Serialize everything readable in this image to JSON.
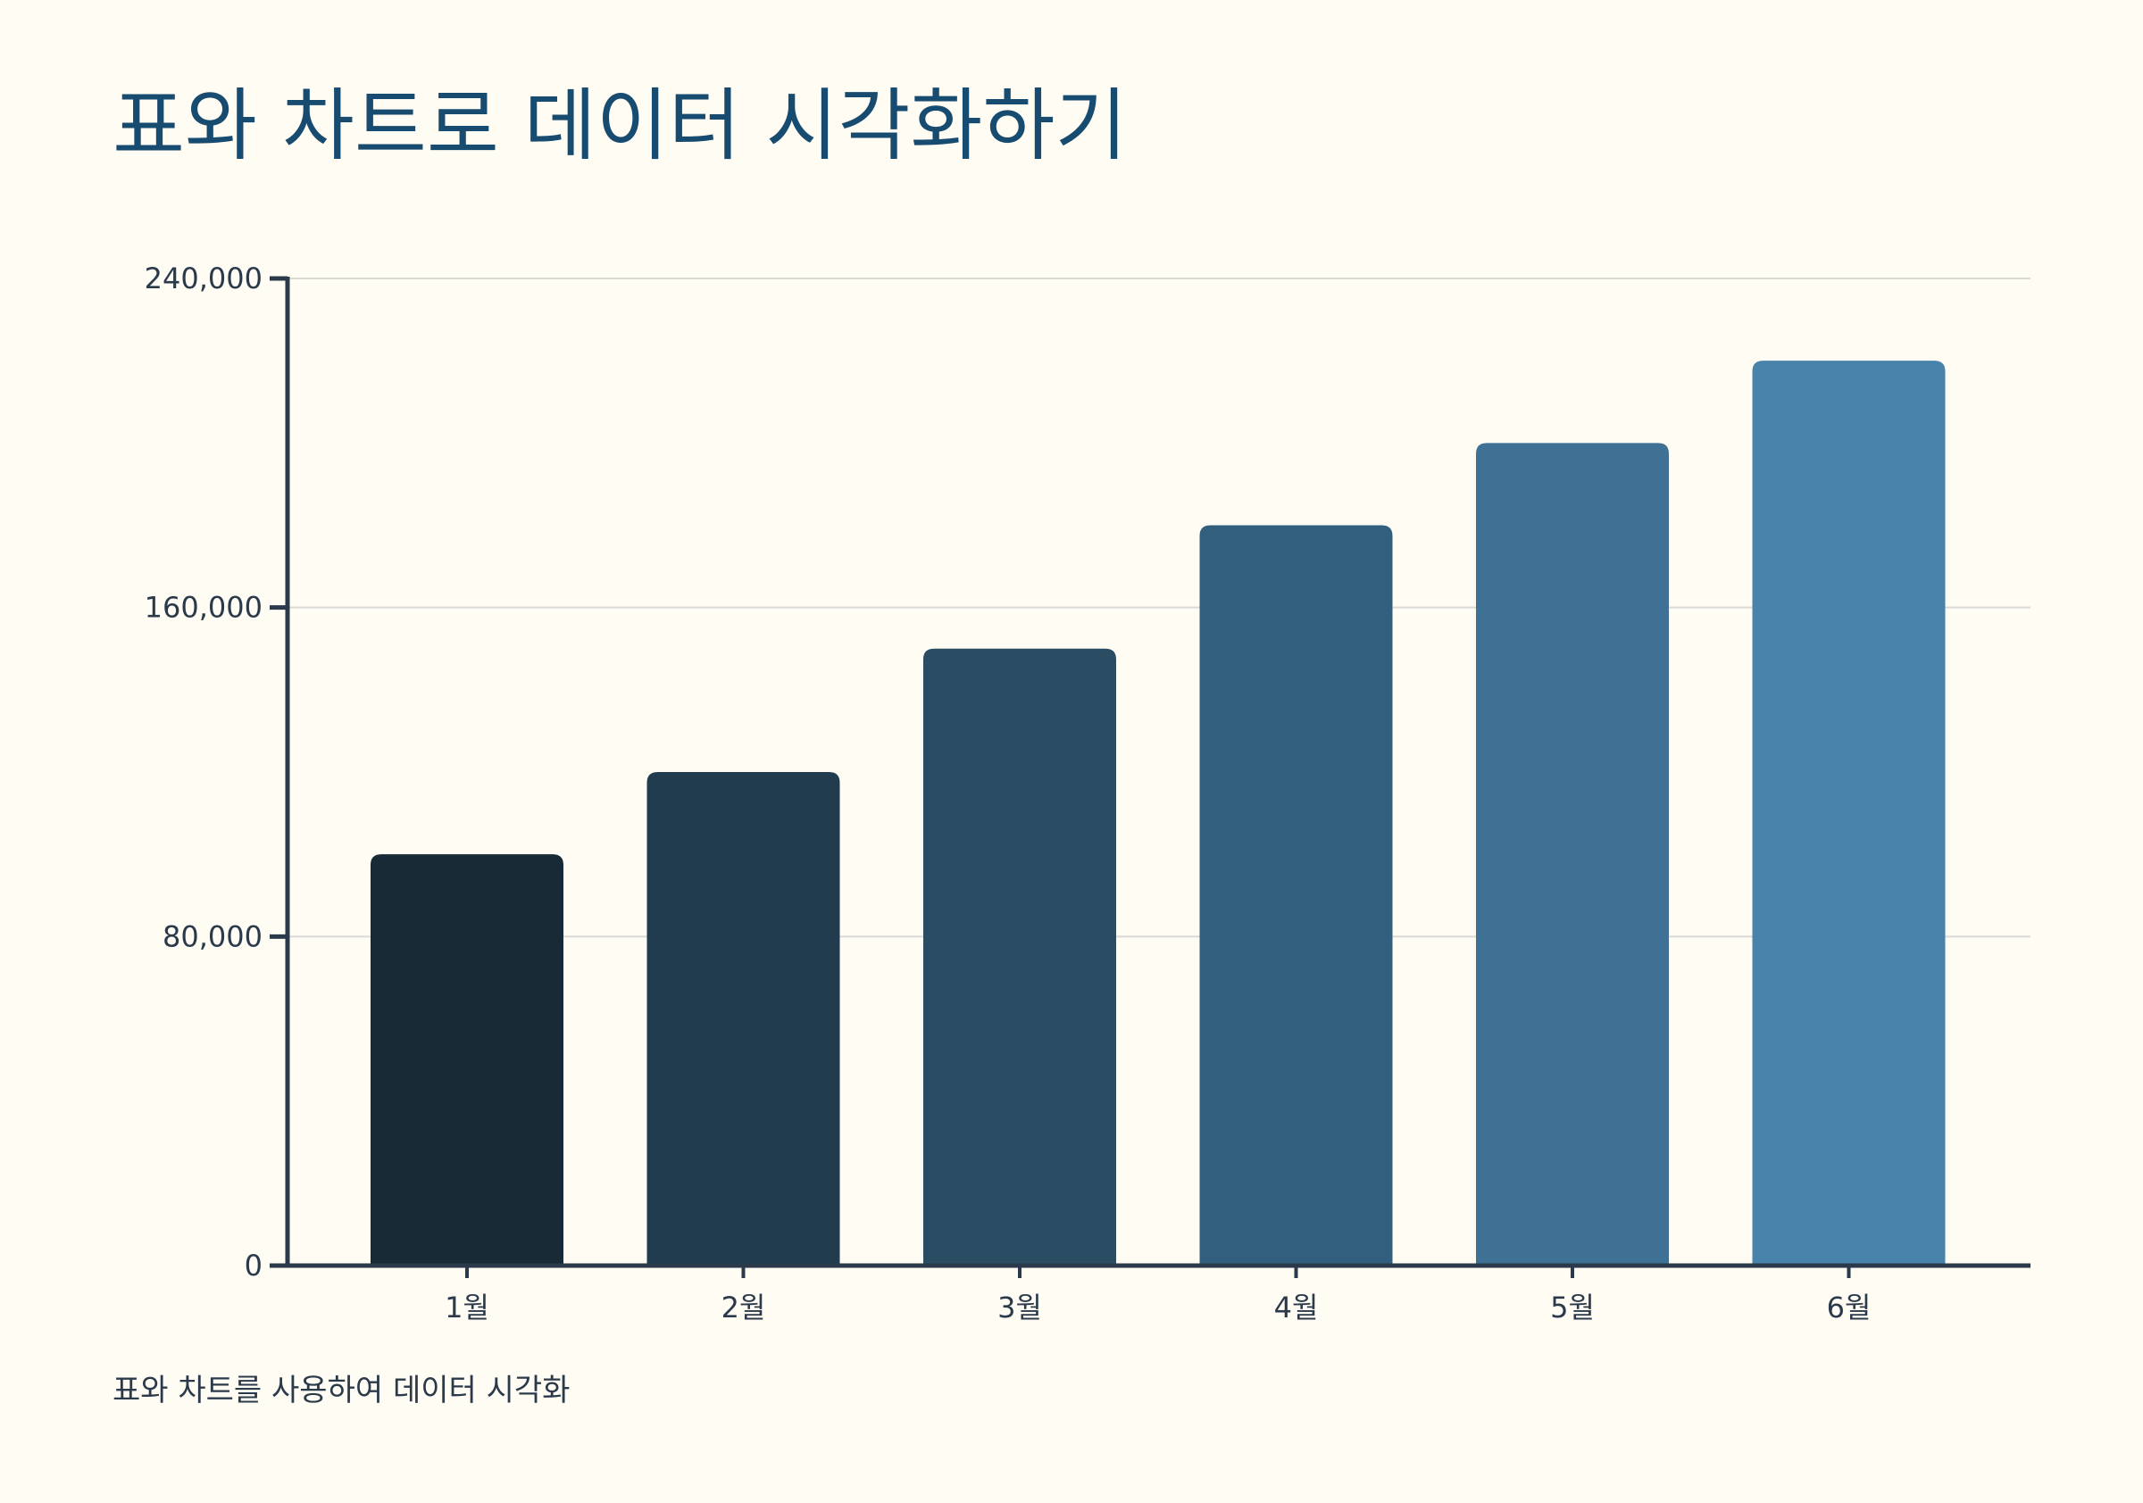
{
  "page": {
    "title": "표와 차트로 데이터 시각화하기",
    "caption": "표와 차트를 사용하여 데이터 시각화"
  },
  "chart_data": {
    "type": "bar",
    "title": "",
    "xlabel": "",
    "ylabel": "",
    "categories": [
      "1월",
      "2월",
      "3월",
      "4월",
      "5월",
      "6월"
    ],
    "values": [
      100000,
      120000,
      150000,
      180000,
      200000,
      220000
    ],
    "ylim": [
      0,
      240000
    ],
    "yticks": [
      0,
      80000,
      160000,
      240000
    ],
    "ytick_labels": [
      "0",
      "80,000",
      "160,000",
      "240,000"
    ],
    "grid": true,
    "legend": "none",
    "colors": [
      "#182a35",
      "#213c4f",
      "#2a4d64",
      "#335f7e",
      "#3e7194",
      "#4883ab"
    ],
    "axis_color": "#2b3a4a",
    "grid_color": "#d9d9d6"
  }
}
